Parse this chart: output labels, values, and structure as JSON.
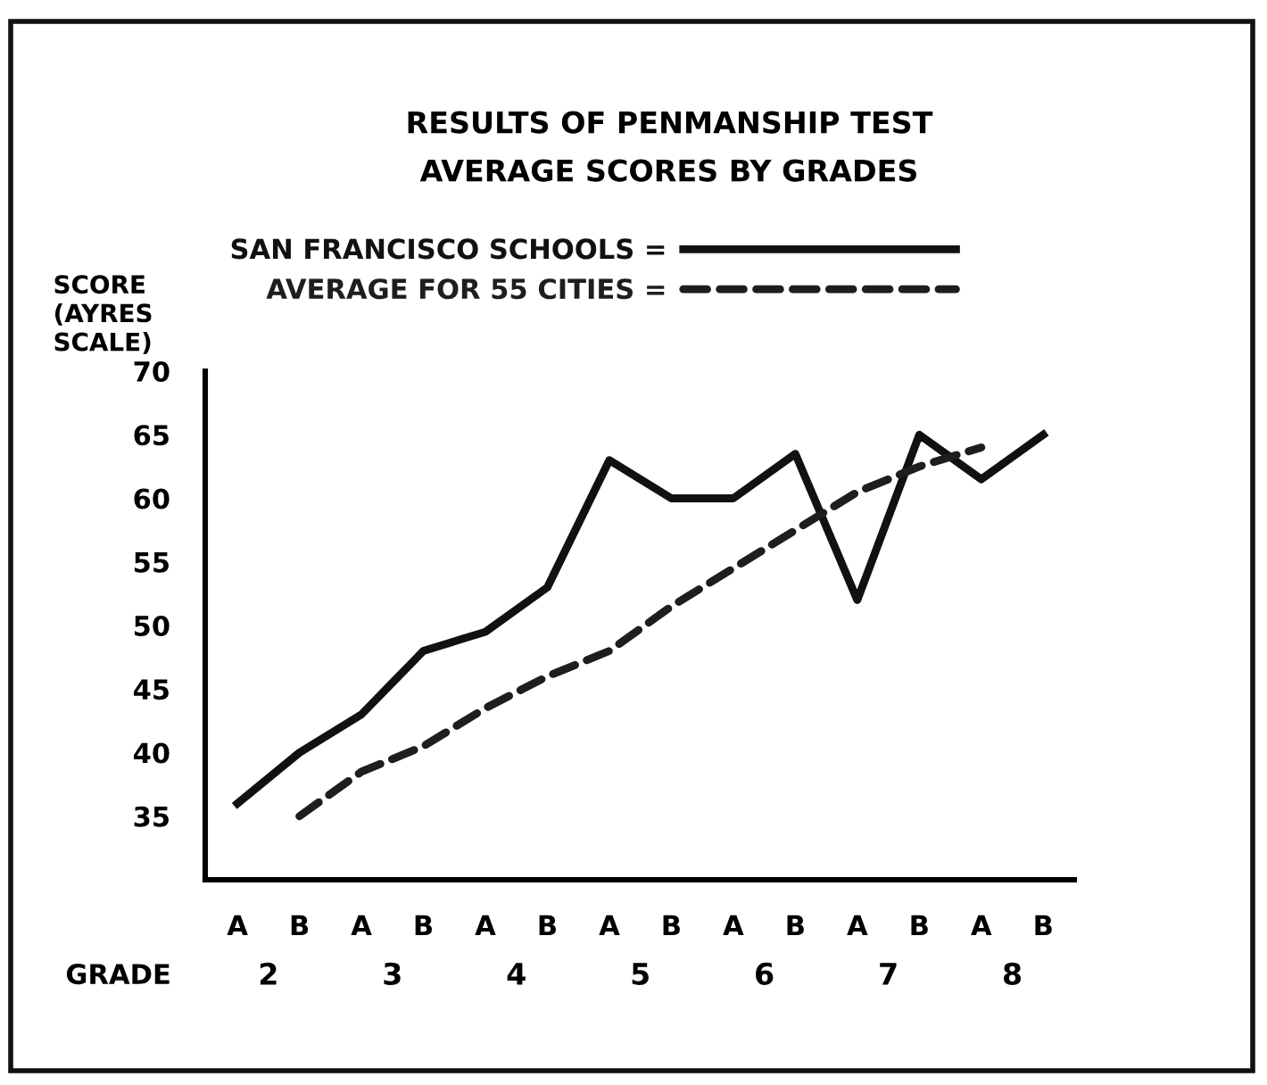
{
  "chart_data": {
    "type": "line",
    "title": "RESULTS OF PENMANSHIP TEST",
    "subtitle": "AVERAGE SCORES BY GRADES",
    "xlabel": "GRADE",
    "ylabel": "SCORE\n(AYRES\nSCALE)",
    "categories": [
      "A",
      "B",
      "A",
      "B",
      "A",
      "B",
      "A",
      "B",
      "A",
      "B",
      "A",
      "B",
      "A",
      "B"
    ],
    "annotations": [
      "2",
      "3",
      "4",
      "5",
      "6",
      "7",
      "8"
    ],
    "series": [
      {
        "name": "SAN FRANCISCO SCHOOLS =",
        "color": "#111111",
        "line_style": "solid",
        "values": [
          36,
          40,
          43,
          48,
          49.5,
          53,
          63,
          60,
          60,
          63.5,
          52,
          65,
          61.5,
          65
        ]
      },
      {
        "name": "AVERAGE FOR 55 CITIES =",
        "color": "#1e1e1e",
        "line_style": "dashed",
        "values": [
          null,
          35,
          38.5,
          40.5,
          43.5,
          46,
          48,
          51.5,
          54.5,
          57.5,
          60.5,
          62.5,
          64,
          null
        ]
      }
    ],
    "ylim": [
      30,
      70
    ],
    "yticks": [
      35,
      40,
      45,
      50,
      55,
      60,
      65,
      70
    ],
    "grid": false,
    "legend": "top left"
  }
}
